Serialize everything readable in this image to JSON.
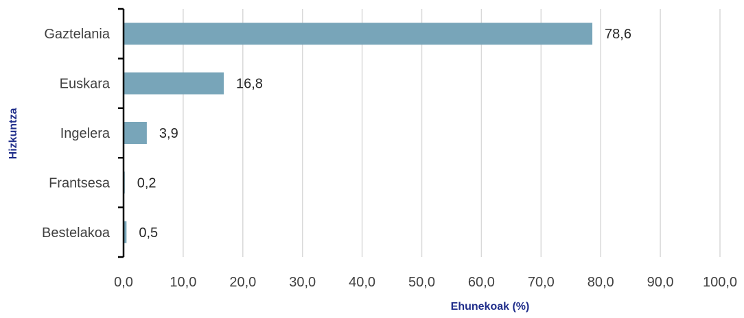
{
  "chart_data": {
    "type": "bar",
    "orientation": "horizontal",
    "categories": [
      "Gaztelania",
      "Euskara",
      "Ingelera",
      "Frantsesa",
      "Bestelakoa"
    ],
    "values": [
      78.6,
      16.8,
      3.9,
      0.2,
      0.5
    ],
    "value_labels": [
      "78,6",
      "16,8",
      "3,9",
      "0,2",
      "0,5"
    ],
    "xlabel": "Ehunekoak (%)",
    "ylabel": "Hizkuntza",
    "xlim": [
      0,
      100
    ],
    "x_ticks": [
      0,
      10,
      20,
      30,
      40,
      50,
      60,
      70,
      80,
      90,
      100
    ],
    "x_tick_labels": [
      "0,0",
      "10,0",
      "20,0",
      "30,0",
      "40,0",
      "50,0",
      "60,0",
      "70,0",
      "80,0",
      "90,0",
      "100,0"
    ],
    "grid": "vertical",
    "legend": "none",
    "colors": {
      "bar": "#78A5B9",
      "grid": "#D9D9D9",
      "axis": "#000000",
      "axis_title": "#1F2D8A",
      "text": "#404040"
    }
  }
}
